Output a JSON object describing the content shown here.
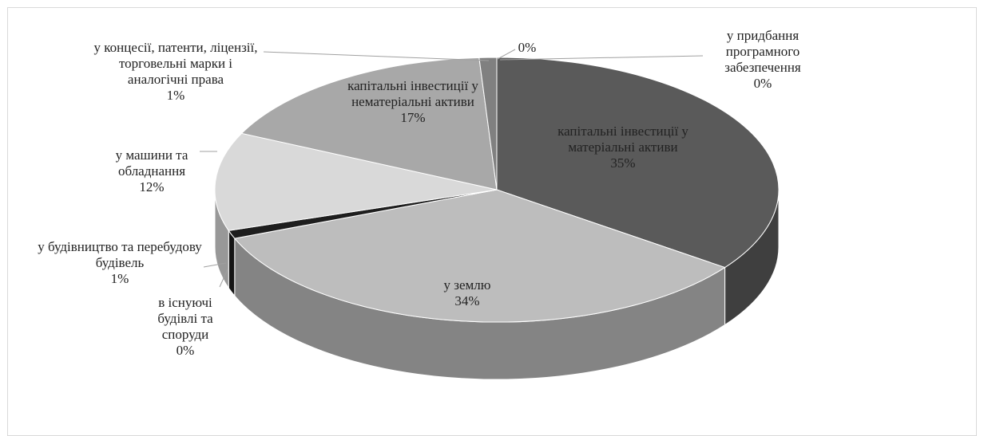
{
  "chart_data": {
    "type": "pie",
    "categories": [
      "капітальні інвестиції у матеріальні активи",
      "у землю",
      "в існуючі будівлі та споруди",
      "у будівництво та перебудову будівель",
      "у машини та обладнання",
      "капітальні інвестиції у нематеріальні активи",
      "у концесії, патенти, ліцензії, торговельні марки і аналогічні права",
      null,
      "у придбання програмного забезпечення"
    ],
    "values": [
      35,
      34,
      0,
      1,
      12,
      17,
      1,
      0,
      0
    ],
    "value_labels": [
      "35%",
      "34%",
      "0%",
      "1%",
      "12%",
      "17%",
      "1%",
      "0%",
      "0%"
    ],
    "colors": [
      "#5a5a5a",
      "#bdbdbd",
      "#f2f2f2",
      "#1e1e1e",
      "#d9d9d9",
      "#a8a8a8",
      "#808080",
      "#d0d0d0",
      "#ededed"
    ]
  }
}
